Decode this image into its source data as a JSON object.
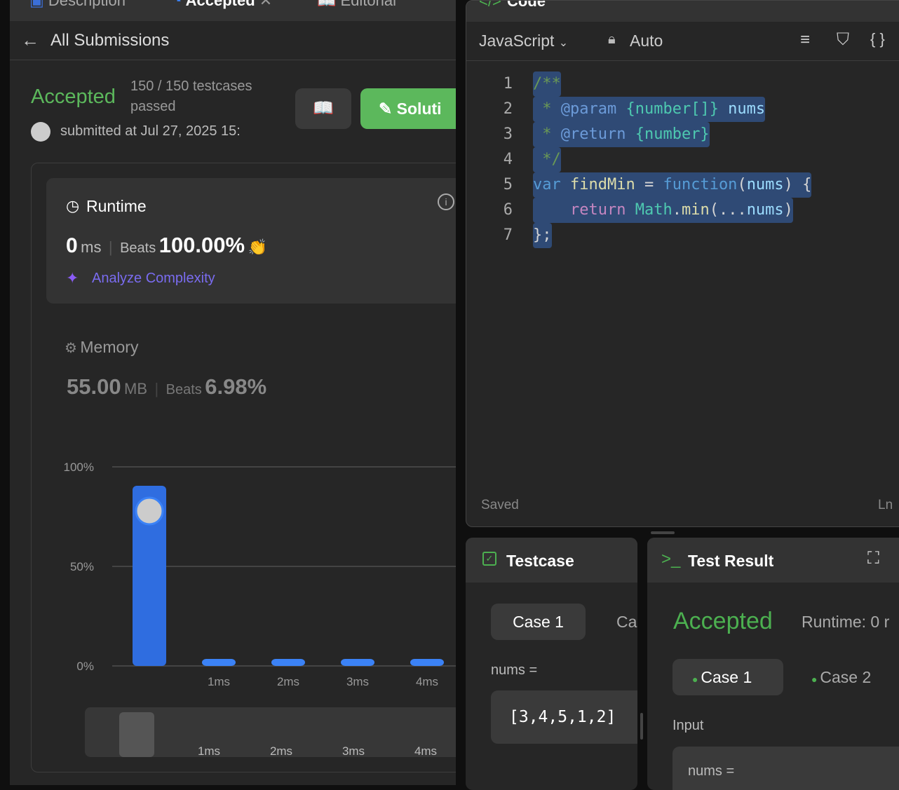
{
  "left_tabs": [
    "Description",
    "Accepted",
    "Editorial"
  ],
  "header": {
    "back_label": "All Submissions"
  },
  "submission": {
    "status": "Accepted",
    "testcases": "150 / 150 testcases",
    "passed": "passed",
    "submitted": "submitted at Jul 27, 2025 15:",
    "solution_label": "Soluti"
  },
  "runtime": {
    "title": "Runtime",
    "value": "0",
    "unit": "ms",
    "beats_label": "Beats",
    "beats": "100.00%",
    "analyze": "Analyze Complexity"
  },
  "memory": {
    "title": "Memory",
    "value": "55.00",
    "unit": "MB",
    "beats_label": "Beats",
    "beats": "6.98%"
  },
  "chart_data": {
    "type": "bar",
    "categories": [
      "",
      "1ms",
      "2ms",
      "3ms",
      "4ms"
    ],
    "values": [
      90.5,
      1,
      1,
      1,
      1
    ],
    "ylim": [
      0,
      100
    ],
    "yticks": [
      "100%",
      "50%",
      "0%"
    ],
    "grid": true,
    "bar_color": "#2f6de0",
    "navigator_labels": [
      "1ms",
      "2ms",
      "3ms",
      "4ms"
    ]
  },
  "code_panel": {
    "title": "Code",
    "language": "JavaScript",
    "mode": "Auto",
    "status": "Saved",
    "position": "Ln"
  },
  "code_lines": [
    {
      "n": "1",
      "text": "/**"
    },
    {
      "n": "2",
      "text": " * @param {number[]} nums"
    },
    {
      "n": "3",
      "text": " * @return {number}"
    },
    {
      "n": "4",
      "text": " */"
    },
    {
      "n": "5",
      "text": "var findMin = function(nums) {"
    },
    {
      "n": "6",
      "text": "    return Math.min(...nums)"
    },
    {
      "n": "7",
      "text": "};"
    }
  ],
  "testcase": {
    "title": "Testcase",
    "case1": "Case 1",
    "case2": "Ca",
    "var": "nums =",
    "value": "[3,4,5,1,2]"
  },
  "result": {
    "title": "Test Result",
    "status": "Accepted",
    "runtime": "Runtime: 0 r",
    "case1": "Case 1",
    "case2": "Case 2",
    "input_label": "Input",
    "var": "nums ="
  },
  "colors": {
    "accent_green": "#5cb85c",
    "accepted": "#4cb050",
    "selection": "#2f4a75"
  }
}
